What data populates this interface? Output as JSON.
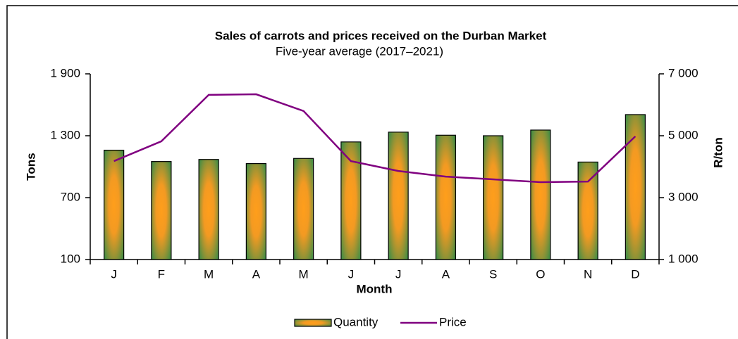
{
  "chart_data": {
    "type": "bar-line",
    "title": "Sales of carrots and prices received on the Durban Market",
    "subtitle": "Five-year average (2017–2021)",
    "x_label": "Month",
    "y_label": "Tons",
    "y2_label": "R/ton",
    "categories": [
      "J",
      "F",
      "M",
      "A",
      "M",
      "J",
      "J",
      "A",
      "S",
      "O",
      "N",
      "D"
    ],
    "series": [
      {
        "name": "Quantity",
        "type": "bar",
        "color": "#2e8b57",
        "values": [
          1160,
          1050,
          1070,
          1030,
          1080,
          1240,
          1335,
          1305,
          1300,
          1355,
          1045,
          1505
        ]
      },
      {
        "name": "Price",
        "type": "line",
        "axis": "y2",
        "color": "#800080",
        "values": [
          4180,
          4820,
          6320,
          6340,
          5800,
          4180,
          3860,
          3680,
          3590,
          3500,
          3520,
          4980
        ]
      }
    ],
    "ylim": [
      100,
      1900
    ],
    "yticks": [
      100,
      700,
      {
        "value": 1300,
        "label": "1 300"
      },
      {
        "value": 1900,
        "label": "1 900"
      }
    ],
    "y2lim": [
      1000,
      7000
    ],
    "y2ticks": [
      {
        "value": 1000,
        "label": "1 000"
      },
      {
        "value": 3000,
        "label": "3 000"
      },
      {
        "value": 5000,
        "label": "5 000"
      },
      {
        "value": 7000,
        "label": "7 000"
      }
    ],
    "legend": "bottom"
  }
}
